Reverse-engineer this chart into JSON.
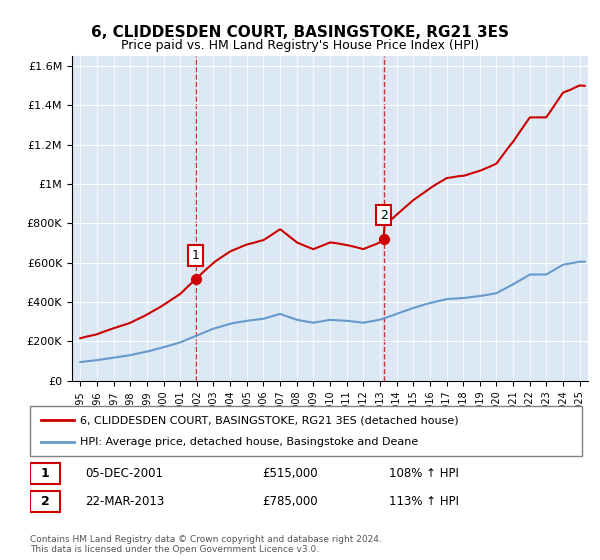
{
  "title": "6, CLIDDESDEN COURT, BASINGSTOKE, RG21 3ES",
  "subtitle": "Price paid vs. HM Land Registry's House Price Index (HPI)",
  "legend_line1": "6, CLIDDESDEN COURT, BASINGSTOKE, RG21 3ES (detached house)",
  "legend_line2": "HPI: Average price, detached house, Basingstoke and Deane",
  "sale1_label": "1",
  "sale1_date": "05-DEC-2001",
  "sale1_price": "£515,000",
  "sale1_hpi": "108% ↑ HPI",
  "sale2_label": "2",
  "sale2_date": "22-MAR-2013",
  "sale2_price": "£785,000",
  "sale2_hpi": "113% ↑ HPI",
  "footnote": "Contains HM Land Registry data © Crown copyright and database right 2024.\nThis data is licensed under the Open Government Licence v3.0.",
  "sale1_year": 2001.92,
  "sale1_value": 515000,
  "sale2_year": 2013.22,
  "sale2_value": 785000,
  "red_line_color": "#cc0000",
  "blue_line_color": "#6699cc",
  "dashed_line_color": "#cc0000",
  "background_color": "#dce9f5",
  "plot_bg_color": "#dce9f5",
  "ylim": [
    0,
    1650000
  ],
  "xlim_start": 1995,
  "xlim_end": 2025.5
}
